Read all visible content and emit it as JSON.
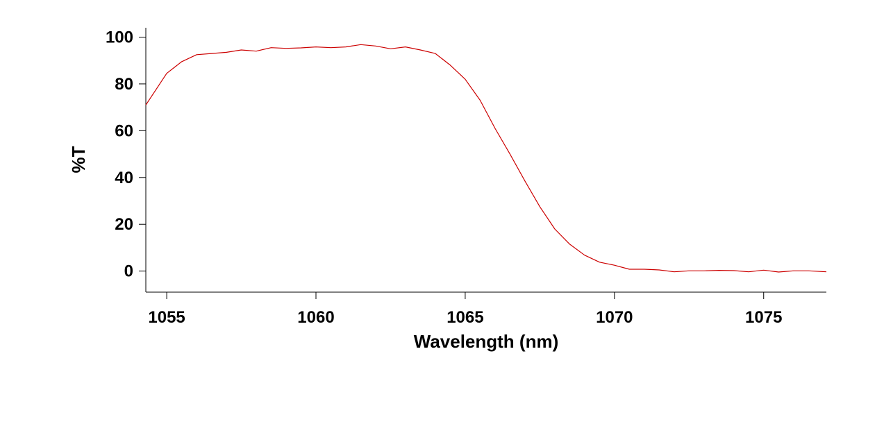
{
  "chart_data": {
    "type": "line",
    "title": "",
    "xlabel": "Wavelength (nm)",
    "ylabel": "%T",
    "xlim": [
      1054.3,
      1077.1
    ],
    "ylim": [
      -9,
      104
    ],
    "xticks": [
      1055,
      1060,
      1065,
      1070,
      1075
    ],
    "yticks": [
      0,
      20,
      40,
      60,
      80,
      100
    ],
    "xtick_labels": [
      "1055",
      "1060",
      "1065",
      "1070",
      "1075"
    ],
    "ytick_labels": [
      "0",
      "20",
      "40",
      "60",
      "80",
      "100"
    ],
    "grid": false,
    "legend": "none",
    "line_color": "#cc0000",
    "series": [
      {
        "x": [
          1054.3,
          1055.0,
          1055.5,
          1056.0,
          1056.5,
          1057.0,
          1057.5,
          1058.0,
          1058.5,
          1059.0,
          1059.5,
          1060.0,
          1060.5,
          1061.0,
          1061.5,
          1062.0,
          1062.5,
          1063.0,
          1063.5,
          1064.0,
          1064.5,
          1065.0,
          1065.5,
          1066.0,
          1066.5,
          1067.0,
          1067.5,
          1068.0,
          1068.5,
          1069.0,
          1069.5,
          1070.0,
          1070.5,
          1071.0,
          1071.5,
          1072.0,
          1072.5,
          1073.0,
          1073.5,
          1074.0,
          1074.5,
          1075.0,
          1075.5,
          1076.0,
          1076.5,
          1077.1
        ],
        "y": [
          71,
          84.5,
          89.5,
          92.5,
          93.0,
          93.5,
          94.5,
          94.0,
          95.5,
          95.2,
          95.4,
          95.8,
          95.5,
          95.8,
          96.8,
          96.2,
          95.0,
          95.8,
          94.5,
          93.0,
          88.0,
          82.0,
          73.0,
          61.0,
          50.0,
          38.5,
          27.5,
          18.0,
          11.5,
          6.8,
          3.8,
          2.5,
          0.8,
          0.8,
          0.5,
          -0.3,
          0.1,
          0.1,
          0.3,
          0.2,
          -0.3,
          0.4,
          -0.4,
          0.1,
          0.1,
          -0.3
        ]
      }
    ]
  }
}
